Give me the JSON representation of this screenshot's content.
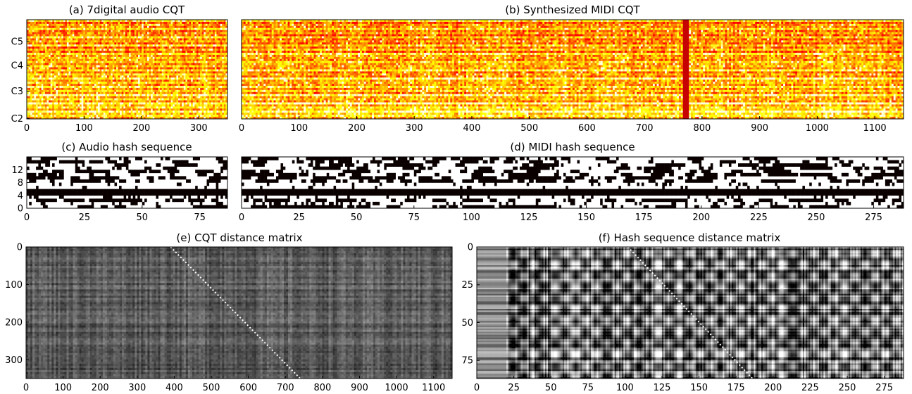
{
  "chart_data": [
    {
      "id": "a",
      "type": "heatmap",
      "title": "(a) 7digital audio CQT",
      "xlim": [
        0,
        350
      ],
      "xticks": [
        0,
        100,
        200,
        300
      ],
      "yticks": [
        "C2",
        "C3",
        "C4",
        "C5"
      ],
      "colormap": "hot"
    },
    {
      "id": "b",
      "type": "heatmap",
      "title": "(b) Synthesized MIDI CQT",
      "xlim": [
        0,
        1150
      ],
      "xticks": [
        0,
        100,
        200,
        300,
        400,
        500,
        600,
        700,
        800,
        900,
        1000,
        1100
      ],
      "colormap": "hot"
    },
    {
      "id": "c",
      "type": "heatmap",
      "title": "(c) Audio hash sequence",
      "xlim": [
        0,
        87
      ],
      "ylim": [
        0,
        16
      ],
      "xticks": [
        0,
        25,
        50,
        75
      ],
      "yticks": [
        0,
        4,
        8,
        12
      ],
      "colormap": "binary"
    },
    {
      "id": "d",
      "type": "heatmap",
      "title": "(d) MIDI hash sequence",
      "xlim": [
        0,
        288
      ],
      "ylim": [
        0,
        16
      ],
      "xticks": [
        0,
        25,
        50,
        75,
        100,
        125,
        150,
        175,
        200,
        225,
        250,
        275
      ],
      "colormap": "binary"
    },
    {
      "id": "e",
      "type": "heatmap",
      "title": "(e) CQT distance matrix",
      "xlim": [
        0,
        1150
      ],
      "ylim": [
        0,
        350
      ],
      "xticks": [
        0,
        100,
        200,
        300,
        400,
        500,
        600,
        700,
        800,
        900,
        1000,
        1100
      ],
      "yticks": [
        0,
        100,
        200,
        300
      ],
      "path": [
        [
          390,
          0
        ],
        [
          740,
          350
        ]
      ],
      "colormap": "gray"
    },
    {
      "id": "f",
      "type": "heatmap",
      "title": "(f) Hash sequence distance matrix",
      "xlim": [
        0,
        288
      ],
      "ylim": [
        0,
        87
      ],
      "xticks": [
        0,
        25,
        50,
        75,
        100,
        125,
        150,
        175,
        200,
        225,
        250,
        275
      ],
      "yticks": [
        0,
        25,
        50,
        75
      ],
      "path": [
        [
          102,
          0
        ],
        [
          186,
          87
        ]
      ],
      "colormap": "gray"
    }
  ]
}
